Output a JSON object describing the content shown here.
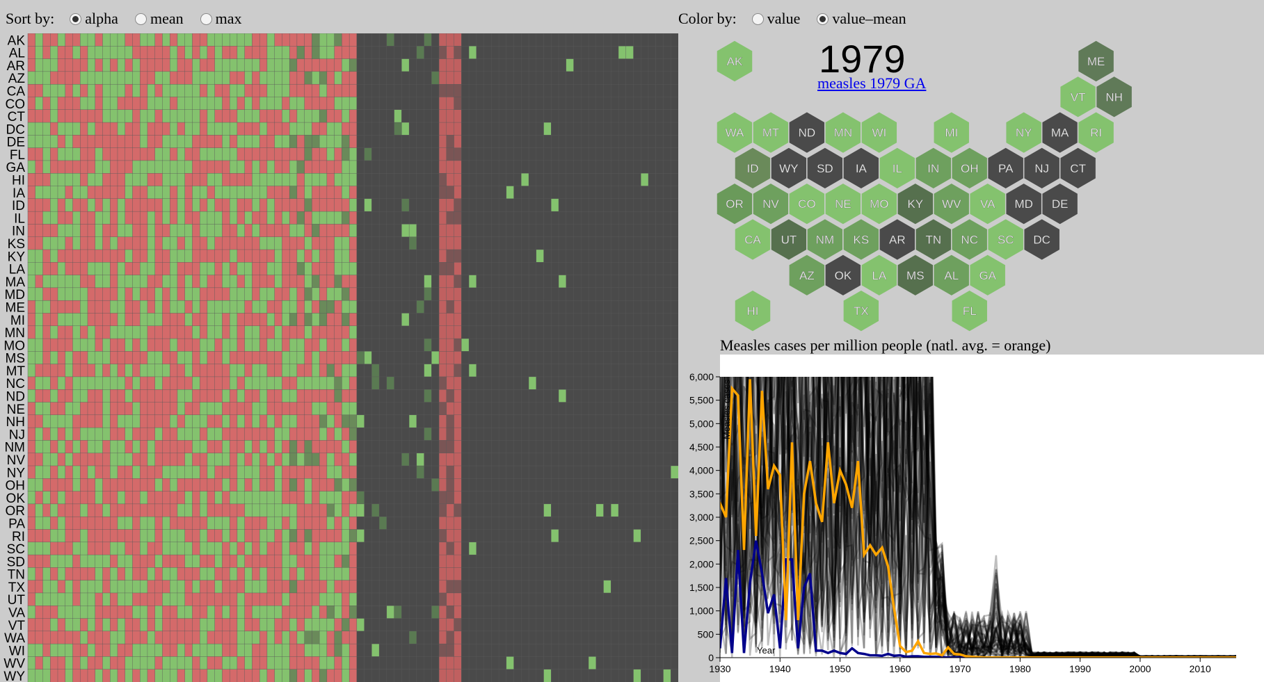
{
  "sort": {
    "label": "Sort by:",
    "options": [
      "alpha",
      "mean",
      "max"
    ],
    "selected": "alpha"
  },
  "color": {
    "label": "Color by:",
    "options": [
      "value",
      "value–mean"
    ],
    "selected": "value–mean"
  },
  "map": {
    "year": "1979",
    "link": "measles 1979 GA"
  },
  "heatmap": {
    "states": [
      "AK",
      "AL",
      "AR",
      "AZ",
      "CA",
      "CO",
      "CT",
      "DC",
      "DE",
      "FL",
      "GA",
      "HI",
      "IA",
      "ID",
      "IL",
      "IN",
      "KS",
      "KY",
      "LA",
      "MA",
      "MD",
      "ME",
      "MI",
      "MN",
      "MO",
      "MS",
      "MT",
      "NC",
      "ND",
      "NE",
      "NH",
      "NJ",
      "NM",
      "NV",
      "NY",
      "OH",
      "OK",
      "OR",
      "PA",
      "RI",
      "SC",
      "SD",
      "TN",
      "TX",
      "UT",
      "VA",
      "VT",
      "WA",
      "WI",
      "WV",
      "WY"
    ],
    "colors": {
      "above": "#d46a6a",
      "below": "#84c26e",
      "near": "#4a4a4a"
    }
  },
  "hex_states": [
    "AK",
    "ME",
    "VT",
    "NH",
    "WA",
    "MT",
    "ND",
    "MN",
    "WI",
    "MI",
    "NY",
    "MA",
    "RI",
    "ID",
    "WY",
    "SD",
    "IA",
    "IL",
    "IN",
    "OH",
    "PA",
    "NJ",
    "CT",
    "OR",
    "NV",
    "CO",
    "NE",
    "MO",
    "KY",
    "WV",
    "VA",
    "MD",
    "DE",
    "CA",
    "UT",
    "NM",
    "KS",
    "AR",
    "TN",
    "NC",
    "SC",
    "DC",
    "AZ",
    "OK",
    "LA",
    "MS",
    "AL",
    "GA",
    "HI",
    "TX",
    "FL"
  ],
  "chart_data": {
    "type": "line",
    "title": "Measles cases per million people (natl. avg. = orange)",
    "xlabel": "Year",
    "ylabel": "Measles cases",
    "xlim": [
      1930,
      2016
    ],
    "ylim": [
      0,
      6000
    ],
    "x_ticks": [
      "1930",
      "1940",
      "1950",
      "1960",
      "1970",
      "1980",
      "1990",
      "2000",
      "2010"
    ],
    "y_ticks": [
      "0",
      "500",
      "1,000",
      "1,500",
      "2,000",
      "2,500",
      "3,000",
      "3,500",
      "4,000",
      "4,500",
      "5,000",
      "5,500",
      "6,000"
    ],
    "series": [
      {
        "name": "natl. avg.",
        "color": "#ffa500",
        "x": [
          1928,
          1929,
          1930,
          1931,
          1932,
          1933,
          1934,
          1935,
          1936,
          1937,
          1938,
          1939,
          1940,
          1941,
          1942,
          1943,
          1944,
          1945,
          1946,
          1947,
          1948,
          1949,
          1950,
          1951,
          1952,
          1953,
          1954,
          1955,
          1956,
          1957,
          1958,
          1959,
          1960,
          1961,
          1962,
          1963,
          1964,
          1965,
          1966,
          1967,
          1968,
          1969,
          1970,
          1971,
          1972,
          1973,
          1974,
          1975,
          1976,
          1977,
          1978,
          1979,
          1980,
          1981,
          1985,
          1990,
          1995,
          2000,
          2010,
          2016
        ],
        "y": [
          3300,
          3550,
          3300,
          3000,
          5750,
          5600,
          2300,
          5950,
          2600,
          5700,
          3600,
          4100,
          3900,
          800,
          4600,
          800,
          3500,
          4200,
          3300,
          2900,
          4600,
          3300,
          4000,
          3700,
          3200,
          4200,
          2200,
          2400,
          2200,
          2350,
          1950,
          1050,
          250,
          120,
          150,
          350,
          100,
          80,
          90,
          50,
          220,
          80,
          70,
          30,
          20,
          10,
          5,
          5,
          5,
          5,
          5,
          5,
          5,
          5,
          5,
          5,
          5,
          5,
          5,
          5
        ]
      },
      {
        "name": "GA",
        "color": "#00008b",
        "x": [
          1928,
          1929,
          1930,
          1931,
          1932,
          1933,
          1934,
          1935,
          1936,
          1937,
          1938,
          1939,
          1940,
          1941,
          1942,
          1943,
          1944,
          1945,
          1946,
          1947,
          1948,
          1949,
          1950,
          1951,
          1952,
          1953,
          1954,
          1955,
          1956,
          1957,
          1958,
          1959,
          1960,
          1961,
          1962,
          1963,
          1964,
          1965,
          1966,
          1967,
          1968,
          1969,
          1970,
          1980,
          1990,
          2000,
          2010,
          2016
        ],
        "y": [
          1700,
          1200,
          200,
          1700,
          100,
          2300,
          100,
          1600,
          2500,
          1800,
          950,
          1350,
          200,
          2100,
          2100,
          200,
          1500,
          1800,
          150,
          150,
          100,
          150,
          100,
          80,
          200,
          100,
          80,
          50,
          50,
          40,
          80,
          40,
          50,
          20,
          30,
          30,
          20,
          20,
          20,
          10,
          5,
          5,
          5,
          5,
          5,
          5,
          5,
          5
        ]
      }
    ]
  }
}
